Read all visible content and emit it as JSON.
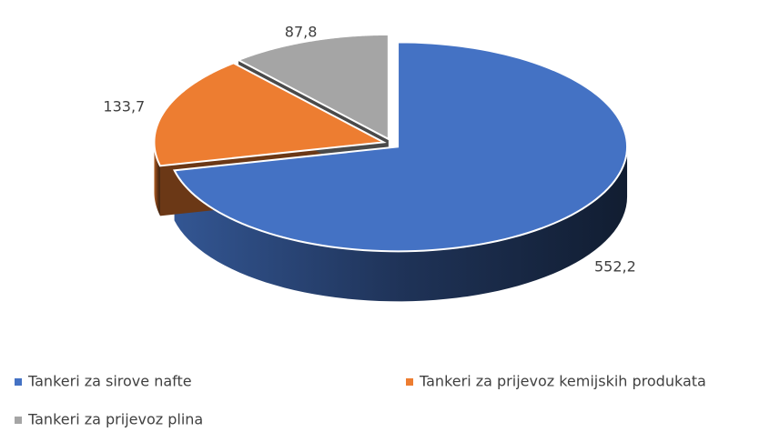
{
  "chart_data": {
    "type": "pie",
    "categories": [
      "Tankeri za sirove nafte",
      "Tankeri za prijevoz kemijskih produkata",
      "Tankeri za prijevoz plina"
    ],
    "values": [
      552.2,
      133.7,
      87.8
    ],
    "value_labels": [
      "552,2",
      "133,7",
      "87,8"
    ],
    "colors": [
      "#4472c4",
      "#ed7d31",
      "#a5a5a5"
    ],
    "legend": "bottom"
  }
}
